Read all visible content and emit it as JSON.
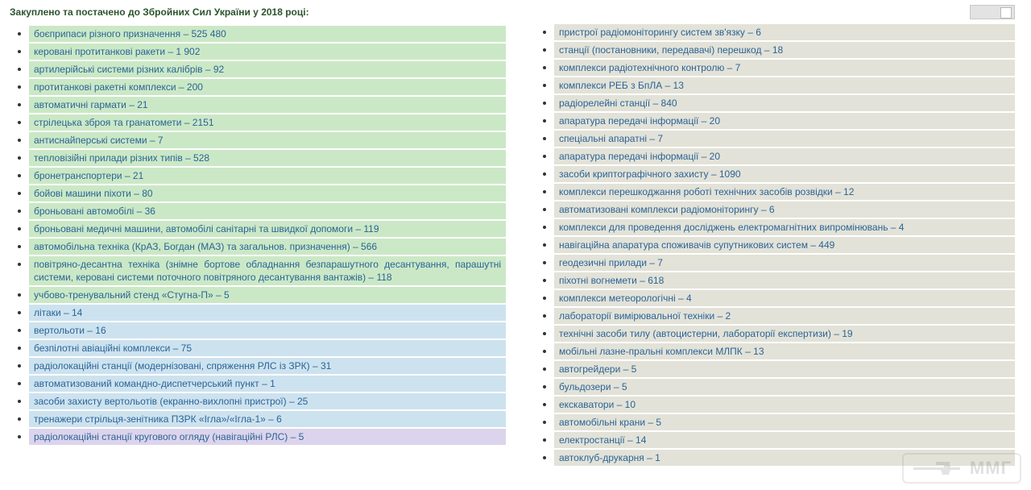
{
  "heading": "Закуплено та постачено до Збройних Сил України у 2018 році:",
  "colors": {
    "green": "#cbe8c6",
    "blue": "#cde2ef",
    "violet": "#dcd4ec",
    "grey": "#e3e2d8",
    "link": "#2a6496"
  },
  "left_items": [
    {
      "text": "боєприпаси різного призначення – 525 480",
      "bg": "green"
    },
    {
      "text": "керовані протитанкові ракети – 1 902",
      "bg": "green"
    },
    {
      "text": "артилерійські системи різних калібрів – 92",
      "bg": "green"
    },
    {
      "text": "протитанкові ракетні комплекси – 200",
      "bg": "green"
    },
    {
      "text": "автоматичні гармати – 21",
      "bg": "green"
    },
    {
      "text": "стрілецька зброя та гранатомети – 2151",
      "bg": "green"
    },
    {
      "text": "антиснайперські системи – 7",
      "bg": "green"
    },
    {
      "text": "тепловізійні прилади різних типів – 528",
      "bg": "green"
    },
    {
      "text": "бронетранспортери – 21",
      "bg": "green"
    },
    {
      "text": "бойові машини піхоти – 80",
      "bg": "green"
    },
    {
      "text": "броньовані автомобілі – 36",
      "bg": "green"
    },
    {
      "text": "броньовані медичні машини, автомобілі санітарні та швидкої допомоги – 119",
      "bg": "green"
    },
    {
      "text": "автомобільна техніка (КрАЗ, Богдан (МАЗ) та загальнов. призначення) – 566",
      "bg": "green"
    },
    {
      "text": "повітряно-десантна техніка (знімне бортове обладнання безпарашутного десантування, парашутні системи, керовані системи поточного повітряного десантування вантажів) – 118",
      "bg": "green",
      "justify": true
    },
    {
      "text": "учбово-тренувальний стенд «Стугна-П» – 5",
      "bg": "green"
    },
    {
      "text": "літаки – 14",
      "bg": "blue"
    },
    {
      "text": "вертольоти – 16",
      "bg": "blue"
    },
    {
      "text": "безпілотні авіаційні комплекси – 75",
      "bg": "blue"
    },
    {
      "text": "радіолокаційні станції (модернізовані, спряження РЛС із ЗРК) – 31",
      "bg": "blue"
    },
    {
      "text": "автоматизований командно-диспетчерський пункт – 1",
      "bg": "blue"
    },
    {
      "text": "засоби захисту вертольотів (екранно-вихлопні пристрої) – 25",
      "bg": "blue"
    },
    {
      "text": "тренажери стрільця-зенітника ПЗРК «Ігла»/«Ігла-1» – 6",
      "bg": "blue"
    },
    {
      "text": "радіолокаційні станції кругового огляду (навігаційні РЛС) – 5",
      "bg": "violet"
    }
  ],
  "right_items": [
    {
      "text": "пристрої радіомоніторингу систем зв'язку – 6",
      "bg": "grey"
    },
    {
      "text": "станції (постановники, передавачі) перешкод – 18",
      "bg": "grey"
    },
    {
      "text": "комплекси радіотехнічного контролю – 7",
      "bg": "grey"
    },
    {
      "text": "комплекси РЕБ з БпЛА – 13",
      "bg": "grey"
    },
    {
      "text": "радіорелейні станції – 840",
      "bg": "grey"
    },
    {
      "text": "апаратура передачі інформації – 20",
      "bg": "grey"
    },
    {
      "text": "спеціальні апаратні – 7",
      "bg": "grey"
    },
    {
      "text": "апаратура передачі інформації – 20",
      "bg": "grey"
    },
    {
      "text": "засоби криптографічного захисту – 1090",
      "bg": "grey"
    },
    {
      "text": "комплекси перешкоджання роботі технічних засобів розвідки – 12",
      "bg": "grey"
    },
    {
      "text": "автоматизовані комплекси радіомоніторингу – 6",
      "bg": "grey"
    },
    {
      "text": "комплекси для проведення досліджень електромагнітних випромінювань – 4",
      "bg": "grey"
    },
    {
      "text": "навігаційна апаратура споживачів супутникових систем – 449",
      "bg": "grey"
    },
    {
      "text": "геодезичні прилади – 7",
      "bg": "grey"
    },
    {
      "text": "піхотні вогнемети – 618",
      "bg": "grey"
    },
    {
      "text": "комплекси метеорологічні – 4",
      "bg": "grey"
    },
    {
      "text": "лабораторії вимірювальної техніки – 2",
      "bg": "grey"
    },
    {
      "text": "технічні засоби тилу (автоцистерни, лабораторії експертизи) – 19",
      "bg": "grey"
    },
    {
      "text": "мобільні лазне-пральні комплекси МЛПК – 13",
      "bg": "grey"
    },
    {
      "text": "автогрейдери – 5",
      "bg": "grey"
    },
    {
      "text": "бульдозери – 5",
      "bg": "grey"
    },
    {
      "text": "екскаватори – 10",
      "bg": "grey"
    },
    {
      "text": "автомобільні крани – 5",
      "bg": "grey"
    },
    {
      "text": "електростанції – 14",
      "bg": "grey"
    },
    {
      "text": "автоклуб-друкарня – 1",
      "bg": "grey"
    }
  ],
  "watermark": "ММГ"
}
